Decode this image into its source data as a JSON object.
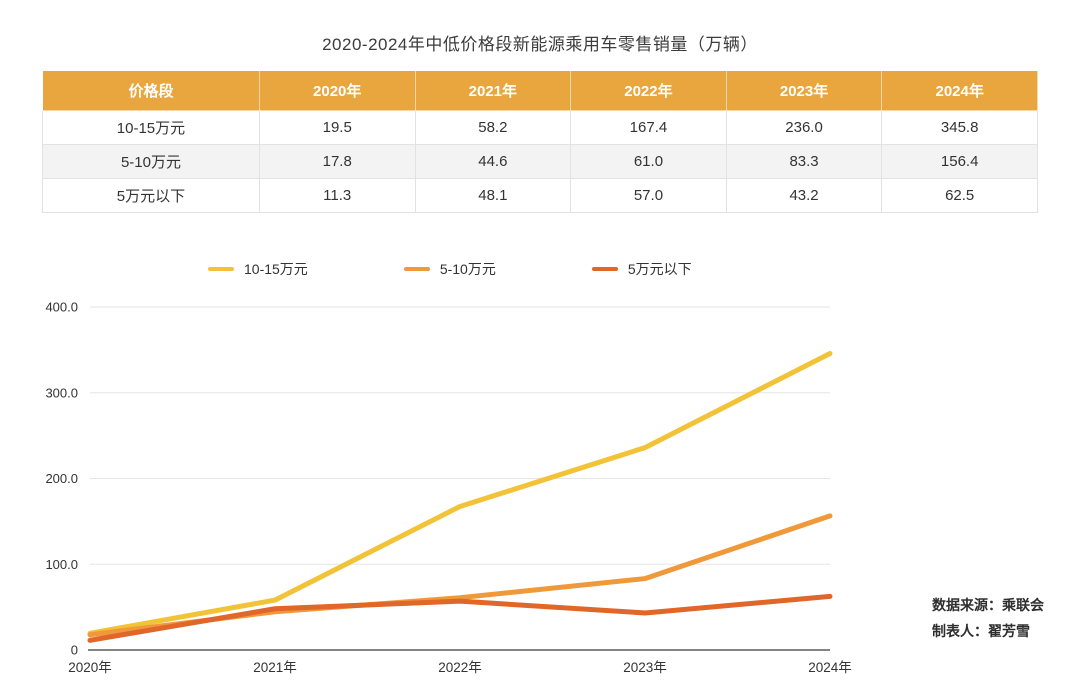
{
  "title": "2020-2024年中低价格段新能源乘用车零售销量（万辆）",
  "table": {
    "header_bg": "#E9A63F",
    "headers": [
      "价格段",
      "2020年",
      "2021年",
      "2022年",
      "2023年",
      "2024年"
    ],
    "rows": [
      [
        "10-15万元",
        "19.5",
        "58.2",
        "167.4",
        "236.0",
        "345.8"
      ],
      [
        "5-10万元",
        "17.8",
        "44.6",
        "61.0",
        "83.3",
        "156.4"
      ],
      [
        "5万元以下",
        "11.3",
        "48.1",
        "57.0",
        "43.2",
        "62.5"
      ]
    ]
  },
  "chart_data": {
    "type": "line",
    "title": "2020-2024年中低价格段新能源乘用车零售销量（万辆）",
    "x": [
      "2020年",
      "2021年",
      "2022年",
      "2023年",
      "2024年"
    ],
    "series": [
      {
        "name": "10-15万元",
        "color": "#F2C237",
        "values": [
          19.5,
          58.2,
          167.4,
          236.0,
          345.8
        ]
      },
      {
        "name": "5-10万元",
        "color": "#F0993A",
        "values": [
          17.8,
          44.6,
          61.0,
          83.3,
          156.4
        ]
      },
      {
        "name": "5万元以下",
        "color": "#E0662A",
        "values": [
          11.3,
          48.1,
          57.0,
          43.2,
          62.5
        ]
      }
    ],
    "ylim": [
      0,
      400
    ],
    "y_ticks": [
      "0",
      "100.0",
      "200.0",
      "300.0",
      "400.0"
    ],
    "grid": true,
    "grid_color": "#E6E6E6",
    "axis_color": "#3A3A3A",
    "legend_position": "top"
  },
  "footer": {
    "source": "数据来源：乘联会",
    "author": "制表人：翟芳雪"
  }
}
